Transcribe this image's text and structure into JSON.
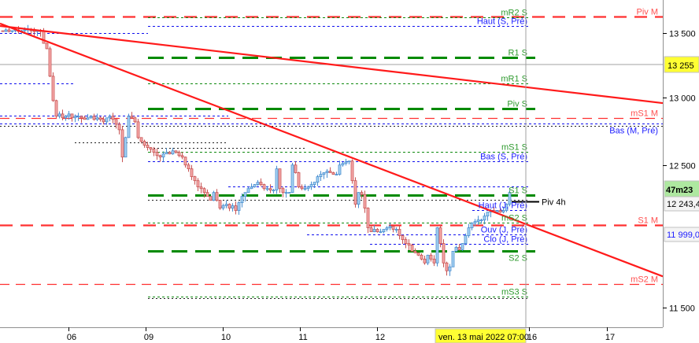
{
  "chart_data": {
    "type": "candlestick",
    "y_scale": "log",
    "ylim": [
      11380,
      13700
    ],
    "price_ticks": [
      "13 500",
      "13 000",
      "12 500",
      "11 500"
    ],
    "price_tick_values": [
      13500,
      13000,
      12500,
      11500
    ],
    "current_price_label": "13 255",
    "current_price_value": 13255,
    "timer_label": "47m23",
    "last_value_label": "12 243,4",
    "last_value": 12243.4,
    "crosshair_value_label": "11 999,0",
    "crosshair_value": 11999,
    "time_ticks": [
      "06",
      "09",
      "10",
      "11",
      "12",
      "16",
      "17"
    ],
    "crosshair_time_label": "ven. 13 mai 2022 07:00",
    "colors": {
      "up_fill": "#a6d2f2",
      "up_border": "#4a8fd0",
      "down_fill": "#f5a9a9",
      "down_border": "#c85454",
      "trendline": "#ff1a1a",
      "highlight": "#ffff33",
      "timer_bg": "#aee8a0"
    },
    "close": [
      13512,
      13525,
      13512,
      13518,
      13525,
      13512,
      13518,
      13525,
      13530,
      13518,
      13512,
      13518,
      13512,
      13419,
      13377,
      13164,
      12978,
      12860,
      12877,
      12848,
      12860,
      12877,
      12848,
      12860,
      12860,
      12848,
      12836,
      12848,
      12860,
      12836,
      12848,
      12836,
      12818,
      12848,
      12860,
      12836,
      12800,
      12759,
      12557,
      12701,
      12860,
      12848,
      12818,
      12701,
      12673,
      12644,
      12627,
      12615,
      12592,
      12568,
      12557,
      12580,
      12592,
      12580,
      12603,
      12592,
      12568,
      12557,
      12499,
      12471,
      12414,
      12385,
      12340,
      12328,
      12300,
      12272,
      12244,
      12300,
      12244,
      12188,
      12205,
      12216,
      12188,
      12205,
      12171,
      12227,
      12272,
      12300,
      12328,
      12340,
      12357,
      12374,
      12357,
      12328,
      12328,
      12317,
      12317,
      12471,
      12328,
      12300,
      12300,
      12300,
      12499,
      12443,
      12340,
      12328,
      12328,
      12340,
      12357,
      12374,
      12414,
      12431,
      12443,
      12454,
      12443,
      12431,
      12431,
      12499,
      12511,
      12522,
      12528,
      12385,
      12216,
      12300,
      12285,
      12188,
      12049,
      12021,
      12038,
      12021,
      12021,
      12038,
      12049,
      12060,
      12038,
      12038,
      11994,
      11966,
      11939,
      11928,
      11885,
      11874,
      11858,
      11831,
      11804,
      11858,
      11831,
      11804,
      12049,
      11939,
      11804,
      11750,
      11777,
      11885,
      11912,
      11896,
      11939,
      11994,
      12049,
      12082,
      12093,
      12104,
      12104,
      12132,
      12160,
      12171,
      12160,
      12171,
      12160,
      12171,
      12216,
      12300
    ],
    "trendlines": [
      {
        "start_price": 13556,
        "end_price": 12959
      },
      {
        "start_price": 13575,
        "end_price": 11712
      }
    ],
    "levels": [
      {
        "label": "Piv M",
        "price": 13631,
        "style": "red-thick"
      },
      {
        "label": "mR2 S",
        "price": 13624,
        "style": "green-dotted"
      },
      {
        "label": "Haut (S, Pré)",
        "price": 13556,
        "style": "blue-dotted"
      },
      {
        "label": "",
        "price": 13500,
        "style": "blue-dotted"
      },
      {
        "label": "R1 S",
        "price": 13310,
        "style": "green-thick"
      },
      {
        "label": "mR1 S",
        "price": 13109,
        "style": "green-dotted"
      },
      {
        "label": "",
        "price": 13109,
        "style": "blue-dotted"
      },
      {
        "label": "Piv S",
        "price": 12919,
        "style": "green-thick"
      },
      {
        "label": "mS1 M",
        "price": 12848,
        "style": "red-thin"
      },
      {
        "label": "Bas (M, Pré)",
        "price": 12806,
        "style": "blue-dotted"
      },
      {
        "label": "",
        "price": 12865,
        "style": "blue-dotted"
      },
      {
        "label": "",
        "price": 12790,
        "style": "black-dotted"
      },
      {
        "label": "",
        "price": 12667,
        "style": "black-dotted"
      },
      {
        "label": "",
        "price": 12626,
        "style": "black-dotted"
      },
      {
        "label": "mS1 S",
        "price": 12597,
        "style": "green-dotted"
      },
      {
        "label": "Bas (S, Pré)",
        "price": 12528,
        "style": "blue-dotted"
      },
      {
        "label": "",
        "price": 12346,
        "style": "blue-dotted"
      },
      {
        "label": "S1 S",
        "price": 12283,
        "style": "green-thick"
      },
      {
        "label": "",
        "price": 12250,
        "style": "black-dotted"
      },
      {
        "label": "Piv 4h",
        "price": 12238,
        "style": "black-solid"
      },
      {
        "label": "Haut (J, Pré)",
        "price": 12177,
        "style": "blue-dotted"
      },
      {
        "label": "mS2 S",
        "price": 12087,
        "style": "green-dotted"
      },
      {
        "label": "S1 M",
        "price": 12071,
        "style": "red-thick"
      },
      {
        "label": "Ouv (J, Pré)",
        "price": 12005,
        "style": "blue-dotted"
      },
      {
        "label": "Clo (J, Pré)",
        "price": 11939,
        "style": "blue-dotted"
      },
      {
        "label": "S2 S",
        "price": 11885,
        "style": "green-thick"
      },
      {
        "label": "mS2 M",
        "price": 11659,
        "style": "red-thin"
      },
      {
        "label": "mS3 S",
        "price": 11573,
        "style": "green-dotted"
      },
      {
        "label": "",
        "price": 11566,
        "style": "black-dotted"
      }
    ]
  }
}
